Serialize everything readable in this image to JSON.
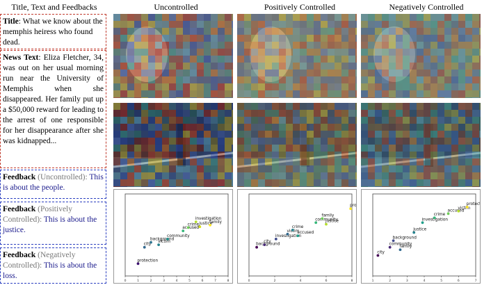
{
  "headers": {
    "left": "Title, Text and Feedbacks",
    "uncontrolled": "Uncontrolled",
    "positive": "Positively Controlled",
    "negative": "Negatively Controlled"
  },
  "title_box": {
    "label": "Title",
    "text": ": What we know about the memphis heiress who found dead."
  },
  "news_box": {
    "label": "News Text",
    "text": ": Eliza Fletcher, 34, was out on her usual morning run near the University of Memphis when she disappeared. Her family put up a $50,000 reward for leading to the arrest of one responsible for her disappearance after she was kidnapped..."
  },
  "feedbacks": [
    {
      "label": "Feedback",
      "qualifier": " (Uncontrolled):",
      "text": " This is about the people."
    },
    {
      "label": "Feedback",
      "qualifier": " (Positively Controlled):",
      "text": " This is about the justice."
    },
    {
      "label": "Feedback",
      "qualifier": " (Negatively Controlled):",
      "text": " This is about the loss."
    }
  ],
  "chart_data": [
    {
      "type": "scatter",
      "panel": "uncontrolled",
      "xlim": [
        0,
        8
      ],
      "x_ticks": [
        0,
        1,
        2,
        3,
        4,
        5,
        6,
        7,
        8
      ],
      "ylim": [
        0,
        1
      ],
      "points": [
        {
          "label": "protection",
          "x": 1.0,
          "y": 0.15,
          "color": "#3b0f70"
        },
        {
          "label": "city",
          "x": 1.5,
          "y": 0.35,
          "color": "#31688e"
        },
        {
          "label": "background",
          "x": 2.0,
          "y": 0.41,
          "color": "#2c728e"
        },
        {
          "label": "victim",
          "x": 2.6,
          "y": 0.38,
          "color": "#26828e"
        },
        {
          "label": "community",
          "x": 3.3,
          "y": 0.45,
          "color": "#21918c"
        },
        {
          "label": "accused",
          "x": 4.5,
          "y": 0.55,
          "color": "#35b779"
        },
        {
          "label": "crime",
          "x": 4.9,
          "y": 0.59,
          "color": "#6ece58"
        },
        {
          "label": "investigation",
          "x": 5.5,
          "y": 0.66,
          "color": "#b5de2b"
        },
        {
          "label": "justice",
          "x": 5.8,
          "y": 0.6,
          "color": "#d8e219"
        },
        {
          "label": "family",
          "x": 6.6,
          "y": 0.62,
          "color": "#fde725"
        }
      ]
    },
    {
      "type": "scatter",
      "panel": "positive",
      "xlim": [
        0,
        8
      ],
      "x_ticks": [
        0,
        2,
        4,
        6,
        8
      ],
      "ylim": [
        0,
        1
      ],
      "points": [
        {
          "label": "background",
          "x": 0.6,
          "y": 0.35,
          "color": "#440154"
        },
        {
          "label": "city",
          "x": 1.2,
          "y": 0.38,
          "color": "#482878"
        },
        {
          "label": "investigation",
          "x": 2.1,
          "y": 0.45,
          "color": "#3e4989"
        },
        {
          "label": "victim",
          "x": 3.0,
          "y": 0.51,
          "color": "#31688e"
        },
        {
          "label": "crime",
          "x": 3.4,
          "y": 0.56,
          "color": "#26828e"
        },
        {
          "label": "accused",
          "x": 3.8,
          "y": 0.49,
          "color": "#1f9e89"
        },
        {
          "label": "community",
          "x": 5.2,
          "y": 0.65,
          "color": "#35b779"
        },
        {
          "label": "family",
          "x": 5.7,
          "y": 0.7,
          "color": "#6ece58"
        },
        {
          "label": "justice",
          "x": 6.0,
          "y": 0.63,
          "color": "#b5de2b"
        },
        {
          "label": "protection",
          "x": 7.9,
          "y": 0.82,
          "color": "#fde725"
        }
      ]
    },
    {
      "type": "scatter",
      "panel": "negative",
      "xlim": [
        1,
        7
      ],
      "x_ticks": [
        1,
        2,
        3,
        4,
        5,
        6,
        7
      ],
      "ylim": [
        0,
        1
      ],
      "points": [
        {
          "label": "city",
          "x": 1.3,
          "y": 0.25,
          "color": "#440154"
        },
        {
          "label": "community",
          "x": 2.0,
          "y": 0.35,
          "color": "#482878"
        },
        {
          "label": "background",
          "x": 2.2,
          "y": 0.43,
          "color": "#3e4989"
        },
        {
          "label": "family",
          "x": 2.6,
          "y": 0.32,
          "color": "#31688e"
        },
        {
          "label": "justice",
          "x": 3.4,
          "y": 0.53,
          "color": "#26828e"
        },
        {
          "label": "investigation",
          "x": 3.9,
          "y": 0.65,
          "color": "#1f9e89"
        },
        {
          "label": "crime",
          "x": 4.6,
          "y": 0.71,
          "color": "#35b779"
        },
        {
          "label": "accused",
          "x": 5.4,
          "y": 0.76,
          "color": "#6ece58"
        },
        {
          "label": "victim",
          "x": 6.0,
          "y": 0.79,
          "color": "#b5de2b"
        },
        {
          "label": "protection",
          "x": 6.5,
          "y": 0.84,
          "color": "#fde725"
        }
      ]
    }
  ]
}
